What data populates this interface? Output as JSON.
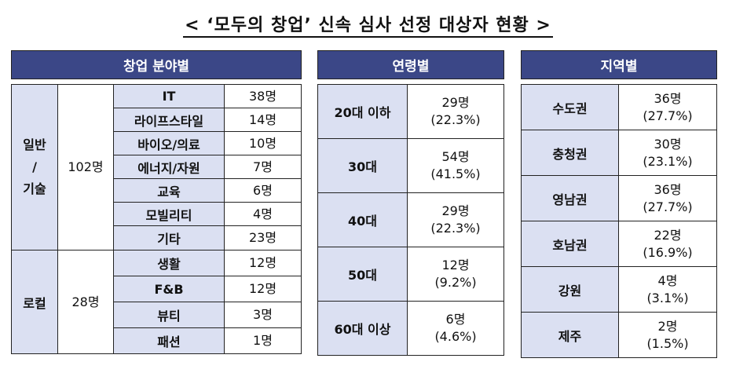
{
  "title": "< ‘모두의 창업’ 신속 심사 선정 대상자 현황 >",
  "field": {
    "header": "창업 분야별",
    "groups": [
      {
        "name": "일반\n/\n기술",
        "total": "102명",
        "rows": [
          {
            "label": "IT",
            "count": "38명"
          },
          {
            "label": "라이프스타일",
            "count": "14명"
          },
          {
            "label": "바이오/의료",
            "count": "10명"
          },
          {
            "label": "에너지/자원",
            "count": "7명"
          },
          {
            "label": "교육",
            "count": "6명"
          },
          {
            "label": "모빌리티",
            "count": "4명"
          },
          {
            "label": "기타",
            "count": "23명"
          }
        ]
      },
      {
        "name": "로컬",
        "total": "28명",
        "rows": [
          {
            "label": "생활",
            "count": "12명"
          },
          {
            "label": "F&B",
            "count": "12명"
          },
          {
            "label": "뷰티",
            "count": "3명"
          },
          {
            "label": "패션",
            "count": "1명"
          }
        ]
      }
    ]
  },
  "age": {
    "header": "연령별",
    "rows": [
      {
        "label": "20대 이하",
        "count": "29명",
        "pct": "(22.3%)"
      },
      {
        "label": "30대",
        "count": "54명",
        "pct": "(41.5%)"
      },
      {
        "label": "40대",
        "count": "29명",
        "pct": "(22.3%)"
      },
      {
        "label": "50대",
        "count": "12명",
        "pct": "(9.2%)"
      },
      {
        "label": "60대 이상",
        "count": "6명",
        "pct": "(4.6%)"
      }
    ]
  },
  "region": {
    "header": "지역별",
    "rows": [
      {
        "label": "수도권",
        "count": "36명",
        "pct": "(27.7%)"
      },
      {
        "label": "충청권",
        "count": "30명",
        "pct": "(23.1%)"
      },
      {
        "label": "영남권",
        "count": "36명",
        "pct": "(27.7%)"
      },
      {
        "label": "호남권",
        "count": "22명",
        "pct": "(16.9%)"
      },
      {
        "label": "강원",
        "count": "4명",
        "pct": "(3.1%)"
      },
      {
        "label": "제주",
        "count": "2명",
        "pct": "(1.5%)"
      }
    ]
  }
}
